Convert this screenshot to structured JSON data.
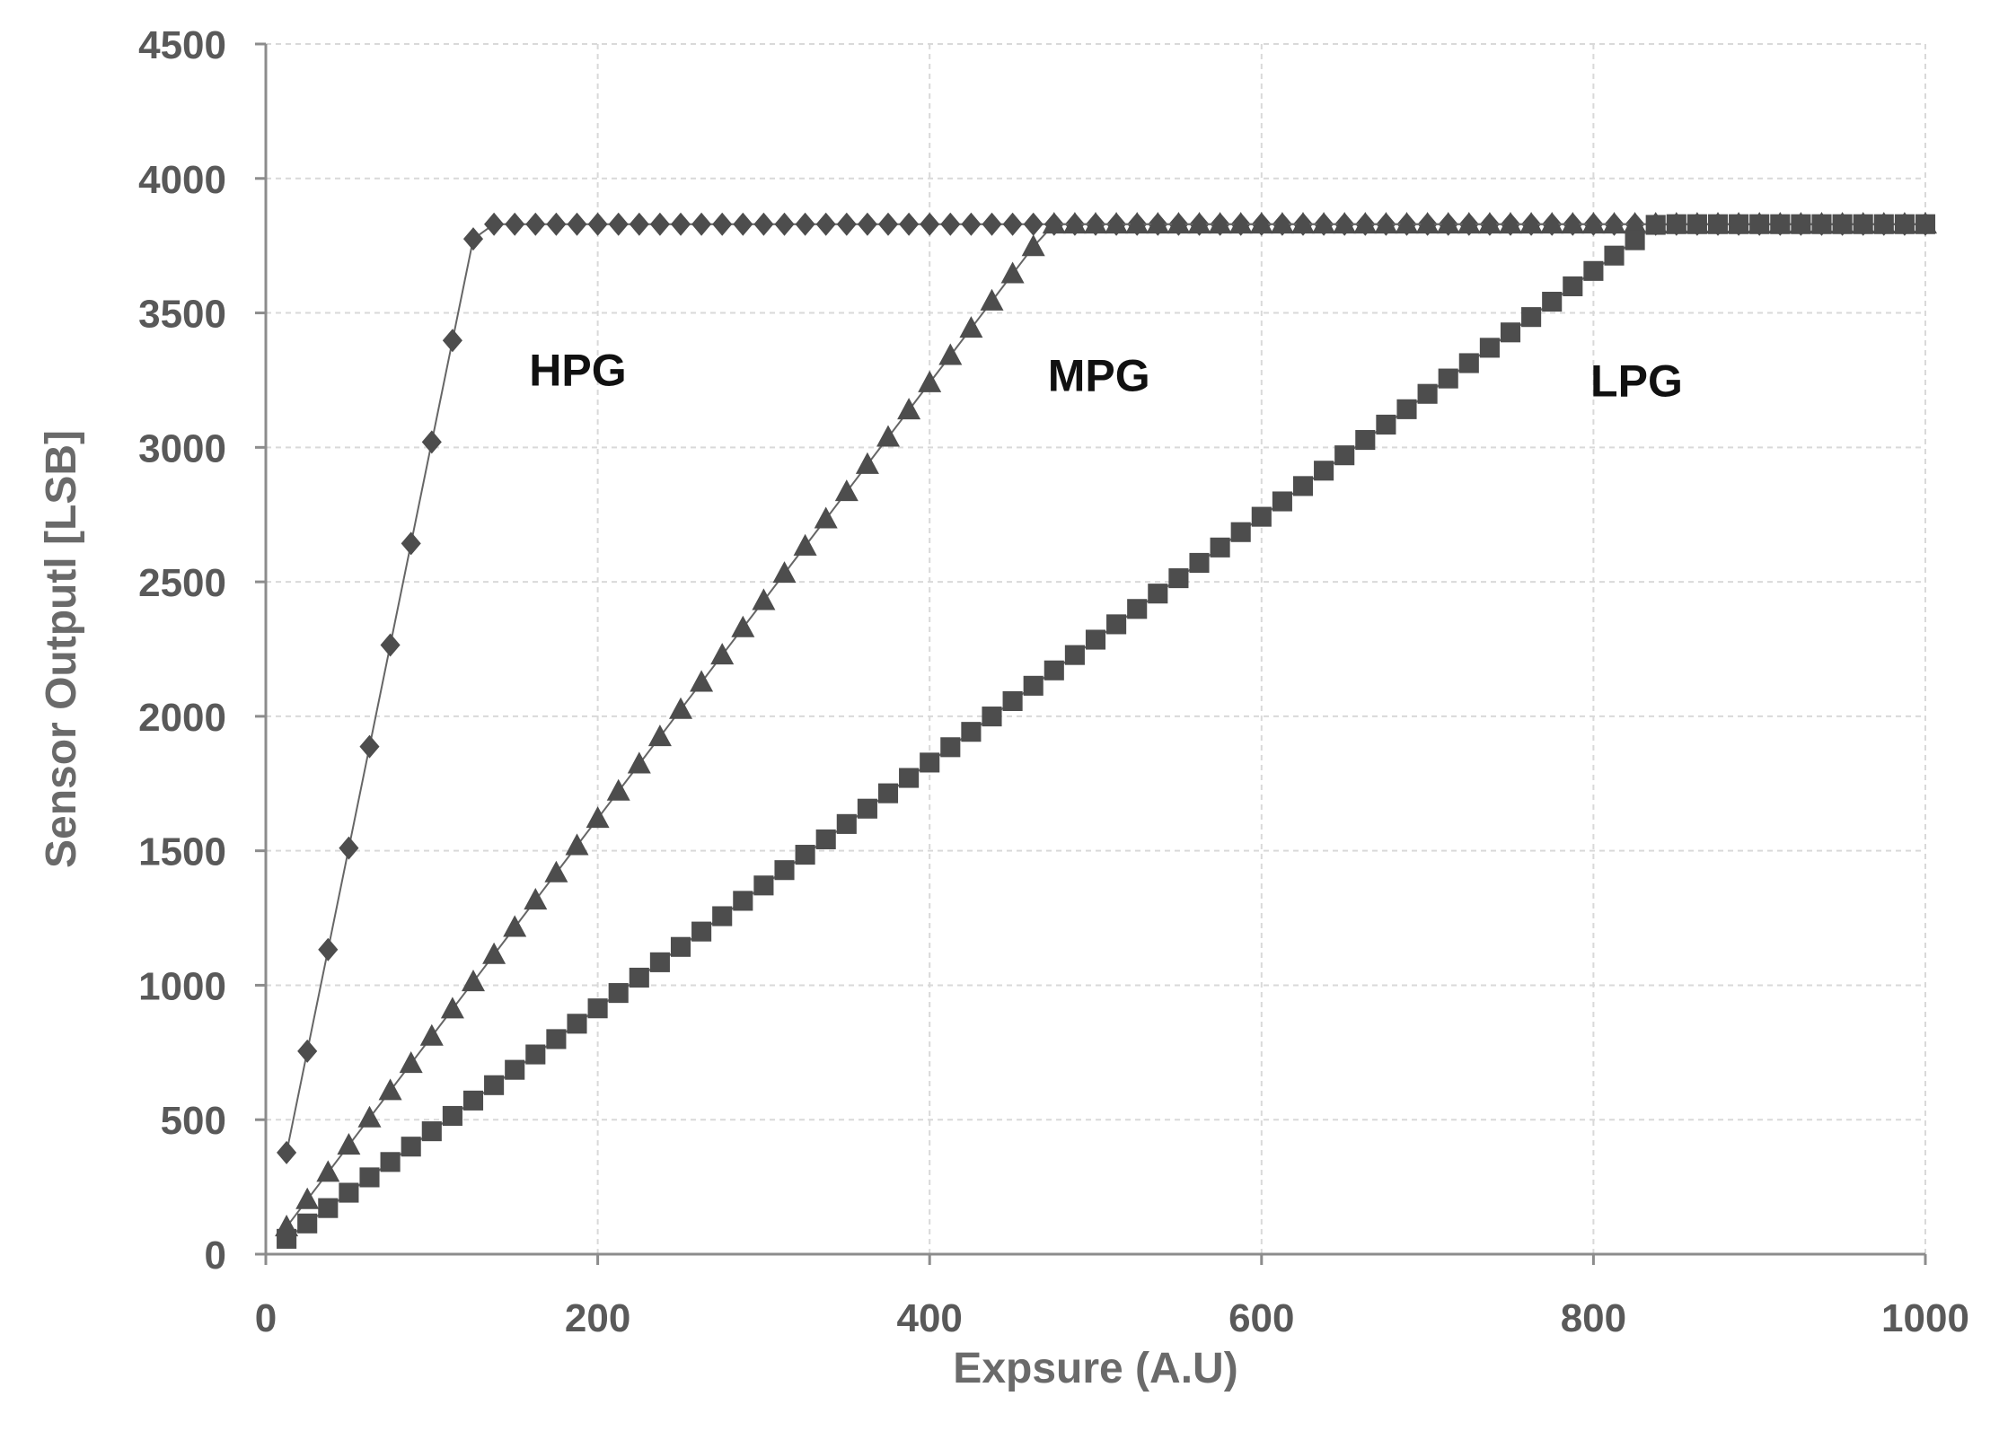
{
  "chart_data": {
    "type": "scatter",
    "title": "",
    "xlabel": "Expsure (A.U)",
    "ylabel": "Sensor Outputl [LSB]",
    "xlim": [
      0,
      1000
    ],
    "ylim": [
      0,
      4500
    ],
    "xticks": [
      0,
      200,
      400,
      600,
      800,
      1000
    ],
    "yticks": [
      0,
      500,
      1000,
      1500,
      2000,
      2500,
      3000,
      3500,
      4000,
      4500
    ],
    "grid": true,
    "saturation": 3830,
    "series": [
      {
        "name": "HPG",
        "marker": "diamond",
        "slope": 30.2,
        "step": 12.5,
        "marker_color": "#4d4d4d",
        "line_color": "#666666"
      },
      {
        "name": "MPG",
        "marker": "triangle",
        "slope": 8.1,
        "step": 12.5,
        "marker_color": "#4d4d4d",
        "line_color": "#666666"
      },
      {
        "name": "LPG",
        "marker": "square",
        "slope": 4.57,
        "step": 12.5,
        "marker_color": "#4d4d4d",
        "line_color": "#666666"
      }
    ],
    "labels": [
      {
        "text": "HPG",
        "x": 188,
        "y": 3290
      },
      {
        "text": "MPG",
        "x": 502,
        "y": 3270
      },
      {
        "text": "LPG",
        "x": 826,
        "y": 3250
      }
    ]
  }
}
